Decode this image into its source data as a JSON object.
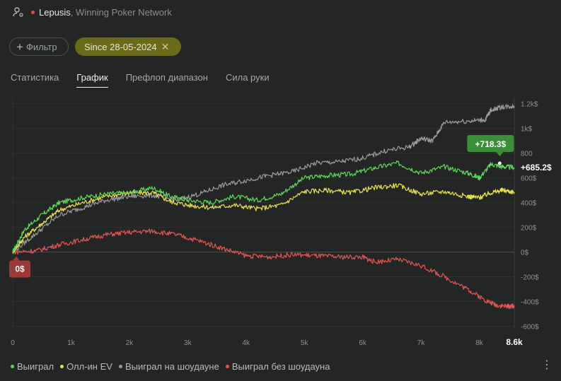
{
  "header": {
    "player": "Lepusis",
    "network": ", Winning Poker Network",
    "player_icon": "player-settings-icon"
  },
  "filters": {
    "filter_label": "Фильтр",
    "date_label": "Since 28-05-2024"
  },
  "tabs": [
    {
      "label": "Статистика",
      "active": false
    },
    {
      "label": "График",
      "active": true
    },
    {
      "label": "Префлоп диапазон",
      "active": false
    },
    {
      "label": "Сила руки",
      "active": false
    }
  ],
  "chart_data": {
    "type": "line",
    "x_ticks": [
      "0",
      "1k",
      "2k",
      "3k",
      "4k",
      "5k",
      "6k",
      "7k",
      "8k"
    ],
    "x_end_label": "8.6k",
    "y_ticks": [
      "1.2k$",
      "1k$",
      "800",
      "600$",
      "400$",
      "200$",
      "0$",
      "-200$",
      "-400$",
      "-600$"
    ],
    "y_tick_values": [
      1200,
      1000,
      800,
      600,
      400,
      200,
      0,
      -200,
      -400,
      -600
    ],
    "xlim": [
      0,
      8600
    ],
    "ylim": [
      -620,
      1250
    ],
    "series": [
      {
        "name": "Выиграл",
        "color": "#5fd65a",
        "final_label": "+685.2$",
        "points": [
          [
            0,
            0
          ],
          [
            200,
            180
          ],
          [
            500,
            300
          ],
          [
            800,
            400
          ],
          [
            1200,
            440
          ],
          [
            1600,
            470
          ],
          [
            2000,
            480
          ],
          [
            2400,
            520
          ],
          [
            2700,
            450
          ],
          [
            3000,
            420
          ],
          [
            3400,
            400
          ],
          [
            3800,
            450
          ],
          [
            4200,
            420
          ],
          [
            4600,
            470
          ],
          [
            5000,
            600
          ],
          [
            5400,
            620
          ],
          [
            5800,
            630
          ],
          [
            6200,
            680
          ],
          [
            6600,
            720
          ],
          [
            7000,
            640
          ],
          [
            7400,
            690
          ],
          [
            7800,
            640
          ],
          [
            8000,
            600
          ],
          [
            8200,
            710
          ],
          [
            8400,
            690
          ],
          [
            8600,
            685
          ]
        ]
      },
      {
        "name": "Олл-ин EV",
        "color": "#e8e04a",
        "points": [
          [
            0,
            0
          ],
          [
            200,
            120
          ],
          [
            500,
            230
          ],
          [
            800,
            340
          ],
          [
            1200,
            400
          ],
          [
            1600,
            450
          ],
          [
            2000,
            480
          ],
          [
            2400,
            480
          ],
          [
            2700,
            410
          ],
          [
            3000,
            380
          ],
          [
            3400,
            360
          ],
          [
            3800,
            380
          ],
          [
            4200,
            350
          ],
          [
            4600,
            380
          ],
          [
            5000,
            490
          ],
          [
            5400,
            500
          ],
          [
            5800,
            480
          ],
          [
            6200,
            520
          ],
          [
            6600,
            540
          ],
          [
            7000,
            470
          ],
          [
            7400,
            490
          ],
          [
            7800,
            450
          ],
          [
            8000,
            440
          ],
          [
            8200,
            480
          ],
          [
            8400,
            500
          ],
          [
            8600,
            485
          ]
        ]
      },
      {
        "name": "Выиграл на шоудауне",
        "color": "#9a9a9a",
        "points": [
          [
            0,
            0
          ],
          [
            400,
            150
          ],
          [
            800,
            300
          ],
          [
            1200,
            360
          ],
          [
            1600,
            420
          ],
          [
            2000,
            450
          ],
          [
            2400,
            460
          ],
          [
            2800,
            420
          ],
          [
            3200,
            470
          ],
          [
            3600,
            540
          ],
          [
            4000,
            580
          ],
          [
            4400,
            620
          ],
          [
            4800,
            650
          ],
          [
            5200,
            720
          ],
          [
            5600,
            730
          ],
          [
            6000,
            760
          ],
          [
            6400,
            820
          ],
          [
            6800,
            850
          ],
          [
            7000,
            920
          ],
          [
            7200,
            900
          ],
          [
            7400,
            1050
          ],
          [
            7800,
            1060
          ],
          [
            8100,
            1070
          ],
          [
            8200,
            1150
          ],
          [
            8400,
            1175
          ],
          [
            8600,
            1180
          ]
        ]
      },
      {
        "name": "Выиграл без шоудауна",
        "color": "#e05555",
        "points": [
          [
            0,
            0
          ],
          [
            400,
            10
          ],
          [
            800,
            60
          ],
          [
            1200,
            100
          ],
          [
            1600,
            140
          ],
          [
            2000,
            160
          ],
          [
            2400,
            170
          ],
          [
            2800,
            140
          ],
          [
            3200,
            90
          ],
          [
            3600,
            30
          ],
          [
            4000,
            -30
          ],
          [
            4400,
            -40
          ],
          [
            4800,
            -20
          ],
          [
            5200,
            -30
          ],
          [
            5600,
            -40
          ],
          [
            6000,
            -40
          ],
          [
            6200,
            -80
          ],
          [
            6600,
            -60
          ],
          [
            7000,
            -110
          ],
          [
            7400,
            -200
          ],
          [
            7800,
            -300
          ],
          [
            8100,
            -390
          ],
          [
            8300,
            -430
          ],
          [
            8500,
            -440
          ],
          [
            8600,
            -435
          ]
        ]
      }
    ],
    "annotations": {
      "start_label": "0$",
      "tooltip_label": "+718.3$"
    }
  },
  "actions": {
    "more_icon": "more-vertical-icon"
  }
}
